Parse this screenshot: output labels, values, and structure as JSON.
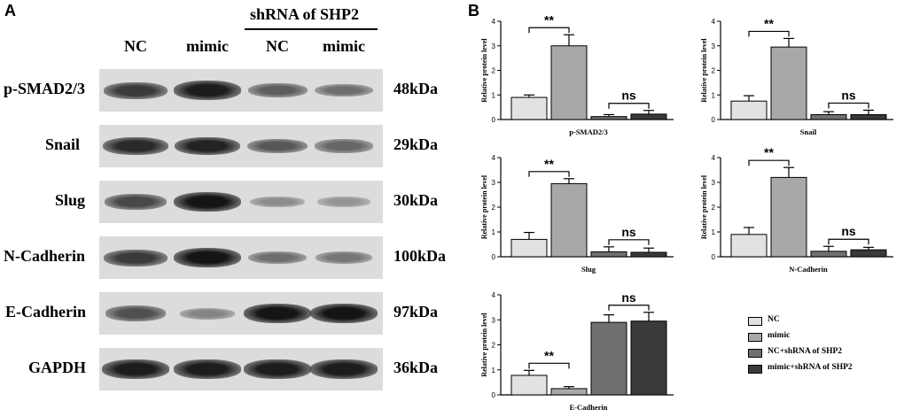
{
  "panels": {
    "a": "A",
    "b": "B"
  },
  "western_blot": {
    "group_header": "shRNA of SHP2",
    "lanes": [
      "NC",
      "mimic",
      "NC",
      "mimic"
    ],
    "rows": [
      {
        "protein": "p-SMAD2/3",
        "size": "48kDa",
        "intensities": [
          0.75,
          0.95,
          0.5,
          0.4
        ]
      },
      {
        "protein": "Snail",
        "size": "29kDa",
        "intensities": [
          0.85,
          0.9,
          0.55,
          0.45
        ]
      },
      {
        "protein": "Slug",
        "size": "30kDa",
        "intensities": [
          0.65,
          1.0,
          0.2,
          0.15
        ]
      },
      {
        "protein": "N-Cadherin",
        "size": "100kDa",
        "intensities": [
          0.75,
          1.0,
          0.4,
          0.35
        ]
      },
      {
        "protein": "E-Cadherin",
        "size": "97kDa",
        "intensities": [
          0.6,
          0.25,
          1.0,
          1.0
        ]
      },
      {
        "protein": "GAPDH",
        "size": "36kDa",
        "intensities": [
          0.95,
          0.95,
          0.95,
          0.95
        ]
      }
    ]
  },
  "colors": {
    "NC": "#e2e2e2",
    "mimic": "#a8a8a8",
    "NC_shRNA": "#707070",
    "mimic_shRNA": "#3a3a3a"
  },
  "legend": [
    "NC",
    "mimic",
    "NC+shRNA of SHP2",
    "mimic+shRNA of SHP2"
  ],
  "chart_data": [
    {
      "type": "bar",
      "title": "p-SMAD2/3",
      "ylabel": "Relative protein level",
      "ylim": [
        0,
        4
      ],
      "yticks": [
        0,
        1,
        2,
        3,
        4
      ],
      "categories": [
        "NC",
        "mimic",
        "NC+shRNA of SHP2",
        "mimic+shRNA of SHP2"
      ],
      "values": [
        0.9,
        3.0,
        0.12,
        0.22
      ],
      "errors": [
        0.1,
        0.45,
        0.08,
        0.15
      ],
      "annotations": [
        {
          "pair": [
            0,
            1
          ],
          "label": "**"
        },
        {
          "pair": [
            2,
            3
          ],
          "label": "ns"
        }
      ]
    },
    {
      "type": "bar",
      "title": "Snail",
      "ylabel": "Relative protein level",
      "ylim": [
        0,
        4
      ],
      "yticks": [
        0,
        1,
        2,
        3,
        4
      ],
      "categories": [
        "NC",
        "mimic",
        "NC+shRNA of SHP2",
        "mimic+shRNA of SHP2"
      ],
      "values": [
        0.75,
        2.95,
        0.2,
        0.2
      ],
      "errors": [
        0.22,
        0.35,
        0.12,
        0.18
      ],
      "annotations": [
        {
          "pair": [
            0,
            1
          ],
          "label": "**"
        },
        {
          "pair": [
            2,
            3
          ],
          "label": "ns"
        }
      ]
    },
    {
      "type": "bar",
      "title": "Slug",
      "ylabel": "Relative protein level",
      "ylim": [
        0,
        4
      ],
      "yticks": [
        0,
        1,
        2,
        3,
        4
      ],
      "categories": [
        "NC",
        "mimic",
        "NC+shRNA of SHP2",
        "mimic+shRNA of SHP2"
      ],
      "values": [
        0.7,
        2.95,
        0.2,
        0.18
      ],
      "errors": [
        0.28,
        0.2,
        0.2,
        0.17
      ],
      "annotations": [
        {
          "pair": [
            0,
            1
          ],
          "label": "**"
        },
        {
          "pair": [
            2,
            3
          ],
          "label": "ns"
        }
      ]
    },
    {
      "type": "bar",
      "title": "N-Cadherin",
      "ylabel": "Relative protein level",
      "ylim": [
        0,
        4
      ],
      "yticks": [
        0,
        1,
        2,
        3,
        4
      ],
      "categories": [
        "NC",
        "mimic",
        "NC+shRNA of SHP2",
        "mimic+shRNA of SHP2"
      ],
      "values": [
        0.9,
        3.2,
        0.22,
        0.28
      ],
      "errors": [
        0.28,
        0.4,
        0.2,
        0.1
      ],
      "annotations": [
        {
          "pair": [
            0,
            1
          ],
          "label": "**"
        },
        {
          "pair": [
            2,
            3
          ],
          "label": "ns"
        }
      ]
    },
    {
      "type": "bar",
      "title": "E-Cadherin",
      "ylabel": "Relative protein level",
      "ylim": [
        0,
        4
      ],
      "yticks": [
        0,
        1,
        2,
        3,
        4
      ],
      "categories": [
        "NC",
        "mimic",
        "NC+shRNA of SHP2",
        "mimic+shRNA of SHP2"
      ],
      "values": [
        0.78,
        0.25,
        2.9,
        2.95
      ],
      "errors": [
        0.2,
        0.08,
        0.3,
        0.35
      ],
      "annotations": [
        {
          "pair": [
            0,
            1
          ],
          "label": "**"
        },
        {
          "pair": [
            2,
            3
          ],
          "label": "ns"
        }
      ]
    }
  ]
}
